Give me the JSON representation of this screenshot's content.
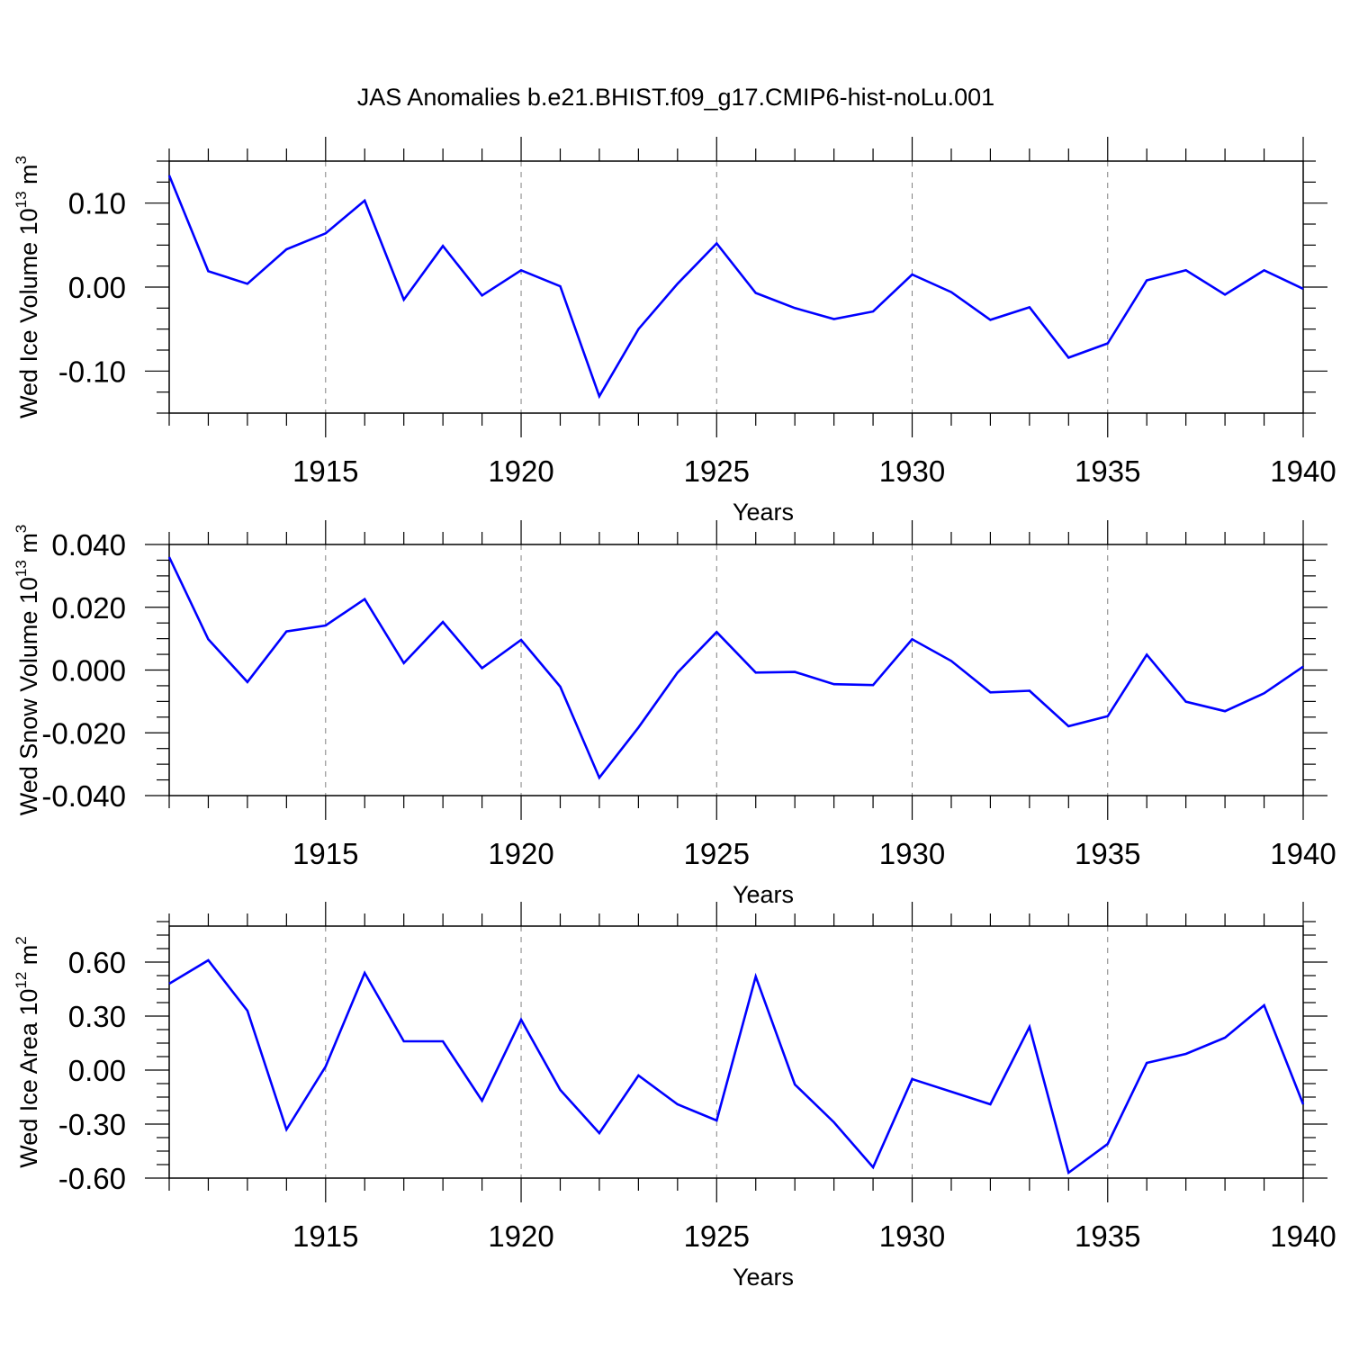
{
  "title": "JAS Anomalies b.e21.BHIST.f09_g17.CMIP6-hist-noLu.001",
  "style": {
    "line_color": "#0000ff",
    "grid_color": "#808080"
  },
  "chart_data": [
    {
      "type": "line",
      "xlabel": "Years",
      "ylabel": {
        "text": "Wed Ice Volume 10",
        "exp": "13",
        "unit": "m",
        "unit_exp": "3"
      },
      "xlim": [
        1911,
        1940
      ],
      "ylim": [
        -0.15,
        0.15
      ],
      "yticks": [
        -0.1,
        0.0,
        0.1
      ],
      "ytick_labels": [
        "-0.10",
        "0.00",
        "0.10"
      ],
      "xticks": [
        1915,
        1920,
        1925,
        1930,
        1935,
        1940
      ],
      "xtick_labels": [
        "1915",
        "1920",
        "1925",
        "1930",
        "1935",
        "1940"
      ],
      "grid": "vertical dashed at major x ticks",
      "series": [
        {
          "x": [
            1911,
            1912,
            1913,
            1914,
            1915,
            1916,
            1917,
            1918,
            1919,
            1920,
            1921,
            1922,
            1923,
            1924,
            1925,
            1926,
            1927,
            1928,
            1929,
            1930,
            1931,
            1932,
            1933,
            1934,
            1935,
            1936,
            1937,
            1938,
            1939,
            1940
          ],
          "values": [
            0.133,
            0.019,
            0.004,
            0.045,
            0.064,
            0.103,
            -0.015,
            0.049,
            -0.01,
            0.02,
            0.001,
            -0.13,
            -0.05,
            0.004,
            0.052,
            -0.007,
            -0.025,
            -0.038,
            -0.029,
            0.015,
            -0.006,
            -0.039,
            -0.024,
            -0.084,
            -0.067,
            0.008,
            0.02,
            -0.009,
            0.02,
            -0.002
          ]
        }
      ]
    },
    {
      "type": "line",
      "xlabel": "Years",
      "ylabel": {
        "text": "Wed Snow Volume 10",
        "exp": "13",
        "unit": "m",
        "unit_exp": "3"
      },
      "xlim": [
        1911,
        1940
      ],
      "ylim": [
        -0.04,
        0.04
      ],
      "yticks": [
        -0.04,
        -0.02,
        0.0,
        0.02,
        0.04
      ],
      "ytick_labels": [
        "-0.040",
        "-0.020",
        "0.000",
        "0.020",
        "0.040"
      ],
      "xticks": [
        1915,
        1920,
        1925,
        1930,
        1935,
        1940
      ],
      "xtick_labels": [
        "1915",
        "1920",
        "1925",
        "1930",
        "1935",
        "1940"
      ],
      "grid": "vertical dashed at major x ticks",
      "series": [
        {
          "x": [
            1911,
            1912,
            1913,
            1914,
            1915,
            1916,
            1917,
            1918,
            1919,
            1920,
            1921,
            1922,
            1923,
            1924,
            1925,
            1926,
            1927,
            1928,
            1929,
            1930,
            1931,
            1932,
            1933,
            1934,
            1935,
            1936,
            1937,
            1938,
            1939,
            1940
          ],
          "values": [
            0.036,
            0.0098,
            -0.0038,
            0.0123,
            0.0142,
            0.0226,
            0.0022,
            0.0153,
            0.0006,
            0.0096,
            -0.0053,
            -0.0343,
            -0.0183,
            -0.0008,
            0.0121,
            -0.0008,
            -0.0006,
            -0.0045,
            -0.0048,
            0.0098,
            0.0029,
            -0.0071,
            -0.0066,
            -0.0179,
            -0.0147,
            0.0049,
            -0.0101,
            -0.0131,
            -0.0074,
            0.0011
          ]
        }
      ]
    },
    {
      "type": "line",
      "xlabel": "Years",
      "ylabel": {
        "text": "Wed Ice Area 10",
        "exp": "12",
        "unit": "m",
        "unit_exp": "2"
      },
      "xlim": [
        1911,
        1940
      ],
      "ylim": [
        -0.6,
        0.8
      ],
      "yticks": [
        -0.6,
        -0.3,
        0.0,
        0.3,
        0.6
      ],
      "ytick_labels": [
        "-0.60",
        "-0.30",
        "0.00",
        "0.30",
        "0.60"
      ],
      "xticks": [
        1915,
        1920,
        1925,
        1930,
        1935,
        1940
      ],
      "xtick_labels": [
        "1915",
        "1920",
        "1925",
        "1930",
        "1935",
        "1940"
      ],
      "grid": "vertical dashed at major x ticks",
      "series": [
        {
          "x": [
            1911,
            1912,
            1913,
            1914,
            1915,
            1916,
            1917,
            1918,
            1919,
            1920,
            1921,
            1922,
            1923,
            1924,
            1925,
            1926,
            1927,
            1928,
            1929,
            1930,
            1931,
            1932,
            1933,
            1934,
            1935,
            1936,
            1937,
            1938,
            1939,
            1940
          ],
          "values": [
            0.48,
            0.61,
            0.33,
            -0.33,
            0.02,
            0.54,
            0.16,
            0.16,
            -0.17,
            0.28,
            -0.11,
            -0.35,
            -0.03,
            -0.19,
            -0.28,
            0.52,
            -0.08,
            -0.29,
            -0.54,
            -0.05,
            -0.12,
            -0.19,
            0.24,
            -0.57,
            -0.41,
            0.04,
            0.09,
            0.18,
            0.36,
            -0.19
          ]
        }
      ]
    }
  ]
}
